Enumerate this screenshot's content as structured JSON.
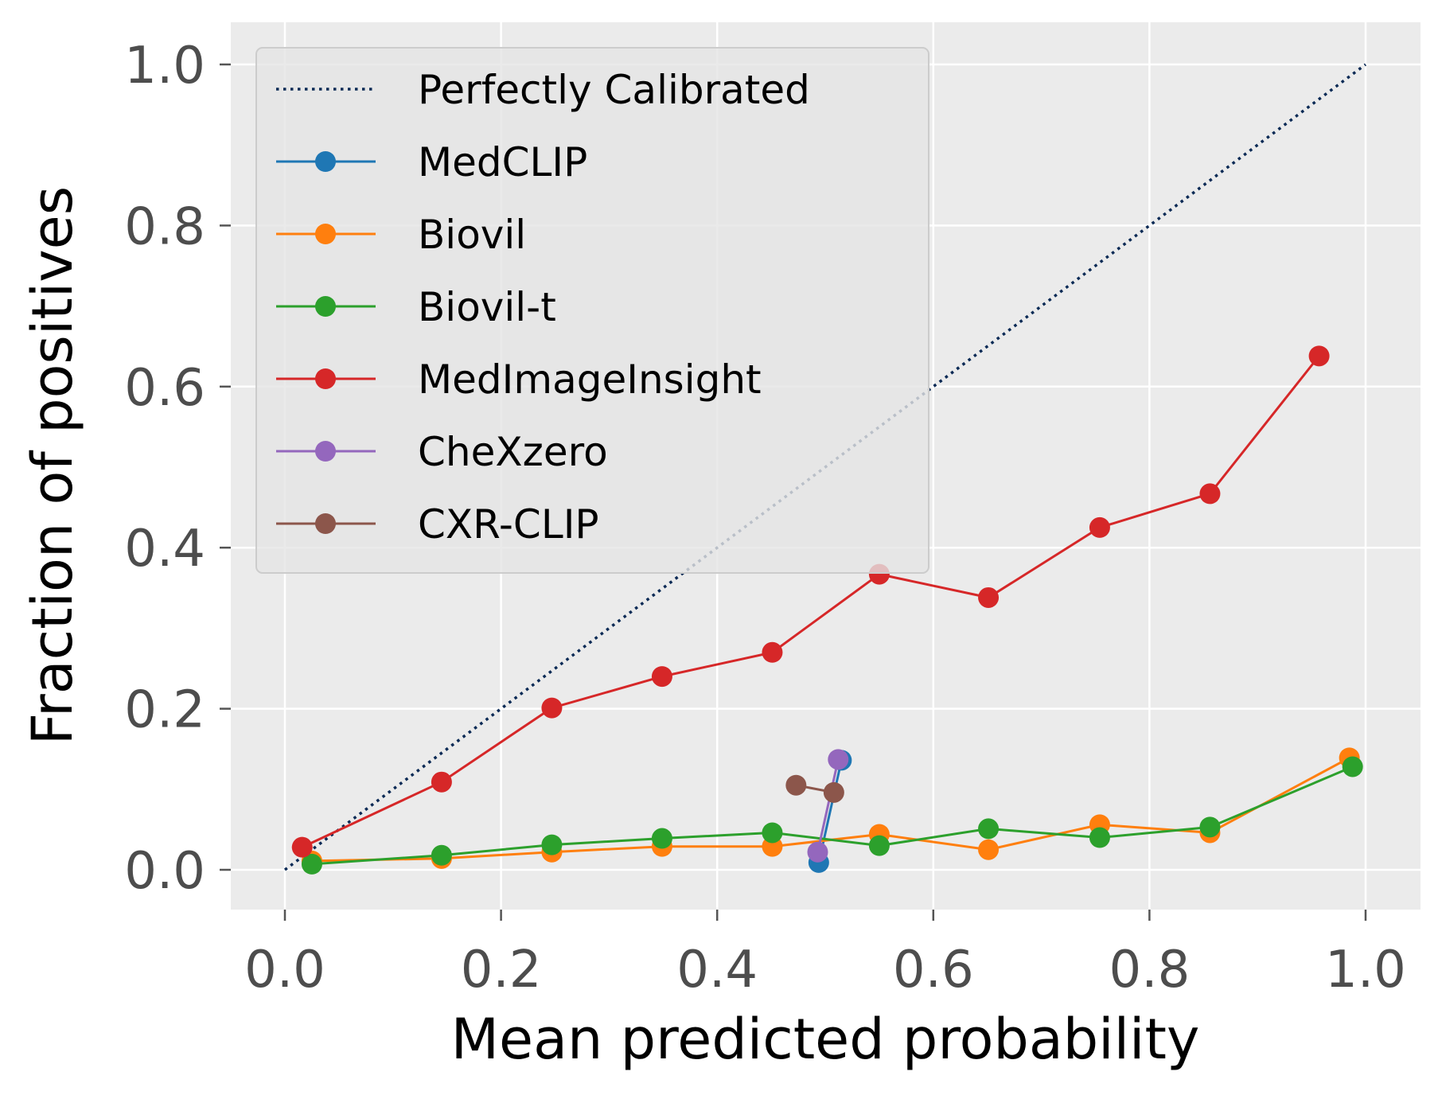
{
  "chart_data": {
    "type": "line",
    "title": "",
    "xlabel": "Mean predicted probability",
    "ylabel": "Fraction of positives",
    "xlim": [
      -0.05,
      1.05
    ],
    "ylim": [
      -0.05,
      1.05
    ],
    "xticks": [
      "0.0",
      "0.2",
      "0.4",
      "0.6",
      "0.8",
      "1.0"
    ],
    "yticks": [
      "0.0",
      "0.2",
      "0.4",
      "0.6",
      "0.8",
      "1.0"
    ],
    "grid": true,
    "legend_position": "top-left",
    "reference_line": {
      "name": "Perfectly Calibrated",
      "style": "dotted",
      "color": "#0b2a55",
      "x": [
        0,
        1
      ],
      "y": [
        0,
        1
      ]
    },
    "series": [
      {
        "name": "MedCLIP",
        "color": "#1f77b4",
        "x": [
          0.494,
          0.515
        ],
        "y": [
          0.009,
          0.136
        ]
      },
      {
        "name": "Biovil",
        "color": "#ff7f0e",
        "x": [
          0.025,
          0.145,
          0.247,
          0.349,
          0.451,
          0.55,
          0.651,
          0.754,
          0.856,
          0.985
        ],
        "y": [
          0.011,
          0.014,
          0.022,
          0.029,
          0.029,
          0.044,
          0.025,
          0.056,
          0.046,
          0.139
        ]
      },
      {
        "name": "Biovil-t",
        "color": "#2ca02c",
        "x": [
          0.025,
          0.145,
          0.247,
          0.349,
          0.451,
          0.55,
          0.651,
          0.754,
          0.856,
          0.988
        ],
        "y": [
          0.007,
          0.018,
          0.031,
          0.039,
          0.046,
          0.03,
          0.051,
          0.04,
          0.053,
          0.128
        ]
      },
      {
        "name": "MedImageInsight",
        "color": "#d62728",
        "x": [
          0.016,
          0.145,
          0.247,
          0.349,
          0.451,
          0.55,
          0.651,
          0.754,
          0.856,
          0.957
        ],
        "y": [
          0.028,
          0.109,
          0.201,
          0.24,
          0.27,
          0.367,
          0.338,
          0.425,
          0.467,
          0.638
        ]
      },
      {
        "name": "CheXzero",
        "color": "#9467bd",
        "x": [
          0.493,
          0.512
        ],
        "y": [
          0.022,
          0.137
        ]
      },
      {
        "name": "CXR-CLIP",
        "color": "#8c564b",
        "x": [
          0.473,
          0.508
        ],
        "y": [
          0.105,
          0.096
        ]
      }
    ]
  }
}
